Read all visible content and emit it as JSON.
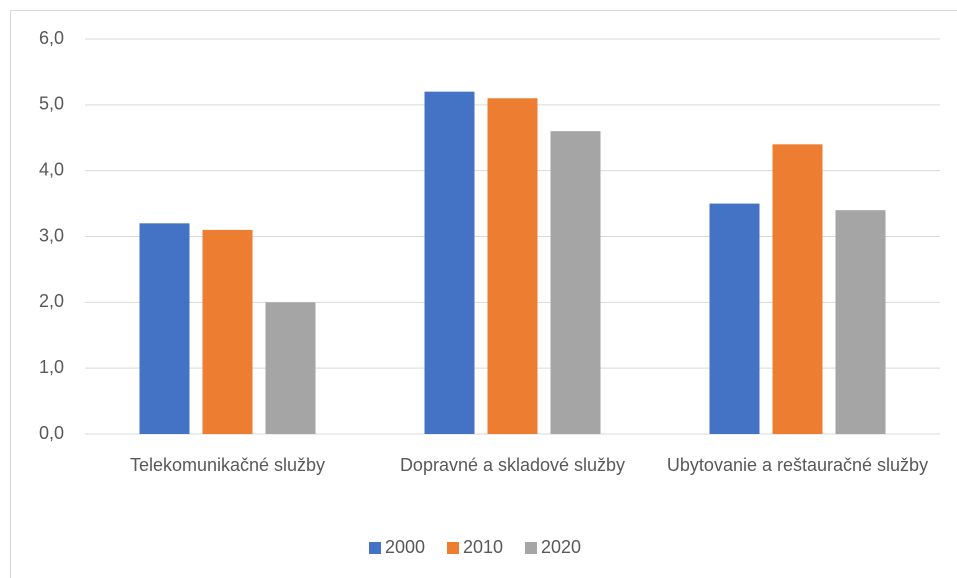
{
  "chart_data": {
    "type": "bar",
    "categories": [
      "Telekomunikačné služby",
      "Dopravné a skladové služby",
      "Ubytovanie a reštauračné služby"
    ],
    "series": [
      {
        "name": "2000",
        "color": "#4472c4",
        "values": [
          3.2,
          5.2,
          3.5
        ]
      },
      {
        "name": "2010",
        "color": "#ed7d31",
        "values": [
          3.1,
          5.1,
          4.4
        ]
      },
      {
        "name": "2020",
        "color": "#a5a5a5",
        "values": [
          2.0,
          4.6,
          3.4
        ]
      }
    ],
    "ylim": [
      0,
      6
    ],
    "yticks": [
      {
        "value": 0,
        "label": "0,0"
      },
      {
        "value": 1,
        "label": "1,0"
      },
      {
        "value": 2,
        "label": "2,0"
      },
      {
        "value": 3,
        "label": "3,0"
      },
      {
        "value": 4,
        "label": "4,0"
      },
      {
        "value": 5,
        "label": "5,0"
      },
      {
        "value": 6,
        "label": "6,0"
      }
    ],
    "grid": true,
    "legend": "bottom"
  }
}
